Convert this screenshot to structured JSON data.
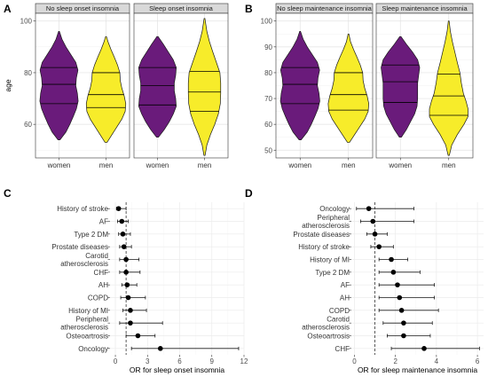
{
  "chart_data": [
    {
      "panel": "A",
      "type": "violin",
      "ylabel": "age",
      "ylim": [
        47,
        103
      ],
      "yticks": [
        60,
        80,
        100
      ],
      "grid": true,
      "facets": [
        {
          "strip": "No sleep onset insomnia",
          "groups": [
            {
              "label": "women",
              "color": "#6a1b7b",
              "min": 54,
              "max": 96,
              "q1": 68,
              "median": 75.5,
              "q3": 82,
              "shape": [
                [
                  54,
                  0.05
                ],
                [
                  57,
                  0.35
                ],
                [
                  60,
                  0.55
                ],
                [
                  63,
                  0.72
                ],
                [
                  66,
                  0.88
                ],
                [
                  69,
                  0.97
                ],
                [
                  72,
                  0.93
                ],
                [
                  75,
                  0.85
                ],
                [
                  78,
                  0.88
                ],
                [
                  81,
                  0.96
                ],
                [
                  84,
                  0.85
                ],
                [
                  87,
                  0.6
                ],
                [
                  90,
                  0.35
                ],
                [
                  93,
                  0.15
                ],
                [
                  96,
                  0.02
                ]
              ]
            },
            {
              "label": "men",
              "color": "#f7ec2a",
              "min": 53,
              "max": 94,
              "q1": 66.5,
              "median": 71.5,
              "q3": 80,
              "shape": [
                [
                  53,
                  0.05
                ],
                [
                  56,
                  0.3
                ],
                [
                  59,
                  0.55
                ],
                [
                  62,
                  0.8
                ],
                [
                  65,
                  0.97
                ],
                [
                  68,
                  1.0
                ],
                [
                  71,
                  0.92
                ],
                [
                  74,
                  0.8
                ],
                [
                  77,
                  0.72
                ],
                [
                  80,
                  0.7
                ],
                [
                  83,
                  0.58
                ],
                [
                  86,
                  0.42
                ],
                [
                  89,
                  0.25
                ],
                [
                  92,
                  0.1
                ],
                [
                  94,
                  0.02
                ]
              ]
            }
          ]
        },
        {
          "strip": "Sleep onset insomnia",
          "groups": [
            {
              "label": "women",
              "color": "#6a1b7b",
              "min": 55,
              "max": 94,
              "q1": 67.5,
              "median": 75,
              "q3": 82,
              "shape": [
                [
                  55,
                  0.05
                ],
                [
                  58,
                  0.35
                ],
                [
                  61,
                  0.6
                ],
                [
                  64,
                  0.8
                ],
                [
                  67,
                  0.95
                ],
                [
                  70,
                  0.92
                ],
                [
                  73,
                  0.85
                ],
                [
                  76,
                  0.85
                ],
                [
                  79,
                  0.92
                ],
                [
                  82,
                  0.95
                ],
                [
                  85,
                  0.8
                ],
                [
                  88,
                  0.55
                ],
                [
                  91,
                  0.3
                ],
                [
                  94,
                  0.03
                ]
              ]
            },
            {
              "label": "men",
              "color": "#f7ec2a",
              "min": 48,
              "max": 101,
              "q1": 65,
              "median": 72.5,
              "q3": 80.5,
              "shape": [
                [
                  48,
                  0.03
                ],
                [
                  52,
                  0.12
                ],
                [
                  56,
                  0.3
                ],
                [
                  60,
                  0.52
                ],
                [
                  64,
                  0.7
                ],
                [
                  68,
                  0.8
                ],
                [
                  72,
                  0.82
                ],
                [
                  76,
                  0.82
                ],
                [
                  80,
                  0.78
                ],
                [
                  84,
                  0.6
                ],
                [
                  88,
                  0.42
                ],
                [
                  92,
                  0.25
                ],
                [
                  96,
                  0.12
                ],
                [
                  101,
                  0.02
                ]
              ]
            }
          ]
        }
      ],
      "x_labels": [
        "women",
        "men"
      ]
    },
    {
      "panel": "B",
      "type": "violin",
      "ylabel": "",
      "ylim": [
        47,
        103
      ],
      "yticks": [
        50,
        60,
        70,
        80,
        90,
        100
      ],
      "grid": true,
      "facets": [
        {
          "strip": "No sleep maintenance insomnia",
          "groups": [
            {
              "label": "women",
              "color": "#6a1b7b",
              "min": 54,
              "max": 96,
              "q1": 68,
              "median": 75.5,
              "q3": 82,
              "shape": [
                [
                  54,
                  0.05
                ],
                [
                  57,
                  0.35
                ],
                [
                  60,
                  0.55
                ],
                [
                  63,
                  0.72
                ],
                [
                  66,
                  0.88
                ],
                [
                  69,
                  0.97
                ],
                [
                  72,
                  0.93
                ],
                [
                  75,
                  0.85
                ],
                [
                  78,
                  0.88
                ],
                [
                  81,
                  0.96
                ],
                [
                  84,
                  0.85
                ],
                [
                  87,
                  0.6
                ],
                [
                  90,
                  0.35
                ],
                [
                  93,
                  0.15
                ],
                [
                  96,
                  0.02
                ]
              ]
            },
            {
              "label": "men",
              "color": "#f7ec2a",
              "min": 53,
              "max": 95,
              "q1": 65.5,
              "median": 71.5,
              "q3": 80,
              "shape": [
                [
                  53,
                  0.05
                ],
                [
                  56,
                  0.3
                ],
                [
                  59,
                  0.55
                ],
                [
                  62,
                  0.8
                ],
                [
                  65,
                  0.97
                ],
                [
                  68,
                  1.0
                ],
                [
                  71,
                  0.92
                ],
                [
                  74,
                  0.8
                ],
                [
                  77,
                  0.72
                ],
                [
                  80,
                  0.7
                ],
                [
                  83,
                  0.58
                ],
                [
                  86,
                  0.42
                ],
                [
                  89,
                  0.25
                ],
                [
                  92,
                  0.1
                ],
                [
                  95,
                  0.02
                ]
              ]
            }
          ]
        },
        {
          "strip": "Sleep maintenance insomnia",
          "groups": [
            {
              "label": "women",
              "color": "#6a1b7b",
              "min": 55,
              "max": 94,
              "q1": 68.5,
              "median": 76.5,
              "q3": 83,
              "shape": [
                [
                  55,
                  0.05
                ],
                [
                  58,
                  0.3
                ],
                [
                  61,
                  0.5
                ],
                [
                  64,
                  0.7
                ],
                [
                  67,
                  0.82
                ],
                [
                  70,
                  0.85
                ],
                [
                  73,
                  0.85
                ],
                [
                  76,
                  0.85
                ],
                [
                  79,
                  0.9
                ],
                [
                  82,
                  0.95
                ],
                [
                  85,
                  0.85
                ],
                [
                  88,
                  0.6
                ],
                [
                  91,
                  0.3
                ],
                [
                  94,
                  0.03
                ]
              ]
            },
            {
              "label": "men",
              "color": "#f7ec2a",
              "min": 48,
              "max": 100,
              "q1": 63.5,
              "median": 71,
              "q3": 79.5,
              "shape": [
                [
                  48,
                  0.03
                ],
                [
                  52,
                  0.15
                ],
                [
                  56,
                  0.42
                ],
                [
                  60,
                  0.75
                ],
                [
                  63,
                  0.95
                ],
                [
                  66,
                  0.95
                ],
                [
                  69,
                  0.85
                ],
                [
                  72,
                  0.72
                ],
                [
                  76,
                  0.62
                ],
                [
                  80,
                  0.55
                ],
                [
                  84,
                  0.42
                ],
                [
                  88,
                  0.3
                ],
                [
                  92,
                  0.18
                ],
                [
                  96,
                  0.08
                ],
                [
                  100,
                  0.02
                ]
              ]
            }
          ]
        }
      ],
      "x_labels": [
        "women",
        "men"
      ]
    },
    {
      "panel": "C",
      "type": "forest",
      "xlabel": "OR for sleep onset insomnia",
      "xlim": [
        -0.5,
        12
      ],
      "xticks": [
        0,
        3,
        6,
        9,
        12
      ],
      "reference_line": 1,
      "rows": [
        {
          "label": "History of stroke",
          "or": 0.3,
          "lo": 0.1,
          "hi": 1.0
        },
        {
          "label": "AF",
          "or": 0.6,
          "lo": 0.2,
          "hi": 1.2
        },
        {
          "label": "Type 2 DM",
          "or": 0.7,
          "lo": 0.3,
          "hi": 1.4
        },
        {
          "label": "Prostate diseases",
          "or": 0.8,
          "lo": 0.4,
          "hi": 1.5
        },
        {
          "label": "Carotid\natherosclerosis",
          "or": 1.0,
          "lo": 0.4,
          "hi": 2.2
        },
        {
          "label": "CHF",
          "or": 1.0,
          "lo": 0.4,
          "hi": 2.3
        },
        {
          "label": "AH",
          "or": 1.1,
          "lo": 0.6,
          "hi": 2.0
        },
        {
          "label": "COPD",
          "or": 1.2,
          "lo": 0.5,
          "hi": 2.8
        },
        {
          "label": "History of MI",
          "or": 1.4,
          "lo": 0.7,
          "hi": 2.9
        },
        {
          "label": "Peripheral\natherosclerosis",
          "or": 1.4,
          "lo": 0.4,
          "hi": 4.4
        },
        {
          "label": "Osteoartrosis",
          "or": 2.1,
          "lo": 1.0,
          "hi": 3.7
        },
        {
          "label": "Oncology",
          "or": 4.2,
          "lo": 1.5,
          "hi": 11.5
        }
      ]
    },
    {
      "panel": "D",
      "type": "forest",
      "xlabel": "OR for sleep maintenance insomnia",
      "xlim": [
        -0.15,
        6.3
      ],
      "xticks": [
        0,
        2,
        4,
        6
      ],
      "reference_line": 1,
      "rows": [
        {
          "label": "Oncology",
          "or": 0.7,
          "lo": 0.1,
          "hi": 2.9
        },
        {
          "label": "Peripheral\natherosclerosis",
          "or": 0.9,
          "lo": 0.3,
          "hi": 2.9
        },
        {
          "label": "Prostate diseases",
          "or": 1.0,
          "lo": 0.6,
          "hi": 1.6
        },
        {
          "label": "History of stroke",
          "or": 1.2,
          "lo": 0.8,
          "hi": 1.9
        },
        {
          "label": "History of MI",
          "or": 1.8,
          "lo": 1.2,
          "hi": 2.6
        },
        {
          "label": "Type 2 DM",
          "or": 1.9,
          "lo": 1.2,
          "hi": 3.2
        },
        {
          "label": "AF",
          "or": 2.1,
          "lo": 1.2,
          "hi": 3.9
        },
        {
          "label": "AH",
          "or": 2.2,
          "lo": 1.2,
          "hi": 3.9
        },
        {
          "label": "COPD",
          "or": 2.3,
          "lo": 1.2,
          "hi": 4.1
        },
        {
          "label": "Carotid\natherosclerosis",
          "or": 2.4,
          "lo": 1.4,
          "hi": 3.8
        },
        {
          "label": "Osteoartrosis",
          "or": 2.4,
          "lo": 1.6,
          "hi": 3.7
        },
        {
          "label": "CHF",
          "or": 3.4,
          "lo": 1.8,
          "hi": 6.1
        }
      ]
    }
  ]
}
